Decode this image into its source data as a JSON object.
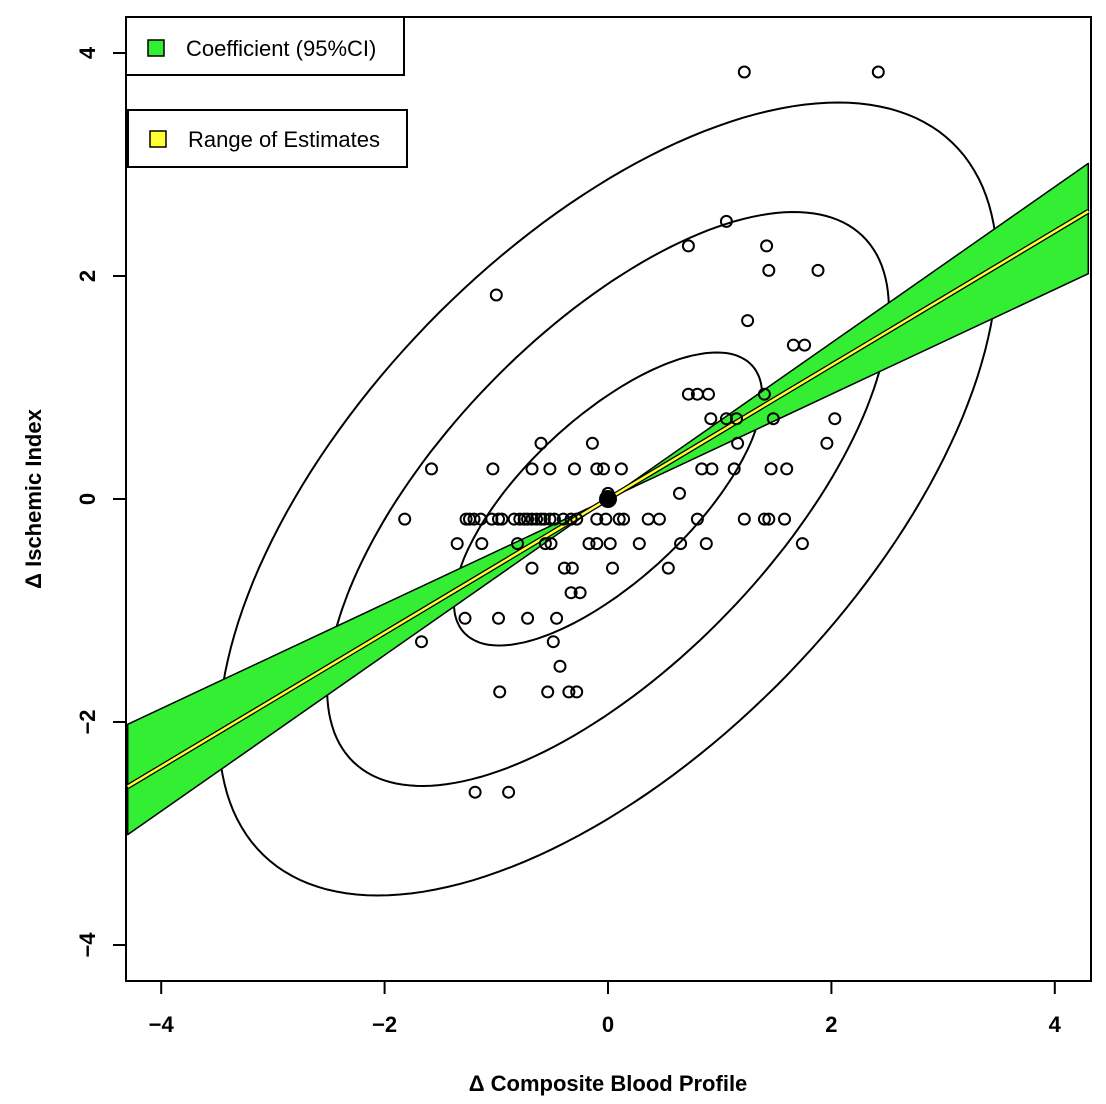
{
  "chart_data": {
    "type": "scatter",
    "xlabel": "Δ Composite Blood Profile",
    "ylabel": "Δ Ischemic Index",
    "xlim": [
      -4.3,
      4.3
    ],
    "ylim": [
      -4.3,
      4.3
    ],
    "xticks": [
      "−4",
      "−2",
      "0",
      "2",
      "4"
    ],
    "yticks": [
      "−4",
      "−2",
      "0",
      "2",
      "4"
    ],
    "xtick_values": [
      -4,
      -2,
      0,
      2,
      4
    ],
    "ytick_values": [
      -4,
      -2,
      0,
      2,
      4
    ],
    "grid": false,
    "legend": {
      "placement": "top-left",
      "entries": [
        {
          "label": "Coefficient (95%CI)",
          "color": "#33ee33"
        },
        {
          "label": "Range of Estimates",
          "color": "#ffff33"
        }
      ]
    },
    "center_point": [
      0,
      0
    ],
    "fit": {
      "slope": 0.6,
      "ci_low": 0.47,
      "ci_high": 0.7
    },
    "ellipses": [
      {
        "a": 1.76,
        "b": 0.73,
        "angle_deg": 43
      },
      {
        "a": 3.28,
        "b": 1.48,
        "angle_deg": 46
      },
      {
        "a": 4.44,
        "b": 2.25,
        "angle_deg": 46
      }
    ],
    "points": [
      [
        1.22,
        3.83
      ],
      [
        2.42,
        3.83
      ],
      [
        1.06,
        2.49
      ],
      [
        0.72,
        2.27
      ],
      [
        1.42,
        2.27
      ],
      [
        1.44,
        2.05
      ],
      [
        1.88,
        2.05
      ],
      [
        -1.0,
        1.83
      ],
      [
        1.25,
        1.6
      ],
      [
        1.66,
        1.38
      ],
      [
        1.76,
        1.38
      ],
      [
        0.72,
        0.94
      ],
      [
        0.8,
        0.94
      ],
      [
        0.9,
        0.94
      ],
      [
        1.4,
        0.94
      ],
      [
        0.92,
        0.72
      ],
      [
        1.06,
        0.72
      ],
      [
        1.15,
        0.72
      ],
      [
        1.48,
        0.72
      ],
      [
        2.03,
        0.72
      ],
      [
        -0.6,
        0.5
      ],
      [
        -0.14,
        0.5
      ],
      [
        1.16,
        0.5
      ],
      [
        1.96,
        0.5
      ],
      [
        -1.58,
        0.27
      ],
      [
        -1.03,
        0.27
      ],
      [
        -0.68,
        0.27
      ],
      [
        -0.52,
        0.27
      ],
      [
        -0.3,
        0.27
      ],
      [
        -0.1,
        0.27
      ],
      [
        -0.04,
        0.27
      ],
      [
        0.12,
        0.27
      ],
      [
        0.84,
        0.27
      ],
      [
        0.93,
        0.27
      ],
      [
        1.13,
        0.27
      ],
      [
        1.46,
        0.27
      ],
      [
        1.6,
        0.27
      ],
      [
        0.64,
        0.05
      ],
      [
        0.0,
        0.05
      ],
      [
        -1.82,
        -0.18
      ],
      [
        -1.27,
        -0.18
      ],
      [
        -1.24,
        -0.18
      ],
      [
        -1.2,
        -0.18
      ],
      [
        -1.14,
        -0.18
      ],
      [
        -1.04,
        -0.18
      ],
      [
        -0.98,
        -0.18
      ],
      [
        -0.95,
        -0.18
      ],
      [
        -0.84,
        -0.18
      ],
      [
        -0.79,
        -0.18
      ],
      [
        -0.75,
        -0.18
      ],
      [
        -0.72,
        -0.18
      ],
      [
        -0.68,
        -0.18
      ],
      [
        -0.64,
        -0.18
      ],
      [
        -0.6,
        -0.18
      ],
      [
        -0.57,
        -0.18
      ],
      [
        -0.52,
        -0.18
      ],
      [
        -0.48,
        -0.18
      ],
      [
        -0.4,
        -0.18
      ],
      [
        -0.33,
        -0.18
      ],
      [
        -0.28,
        -0.18
      ],
      [
        -0.1,
        -0.18
      ],
      [
        -0.02,
        -0.18
      ],
      [
        0.1,
        -0.18
      ],
      [
        0.14,
        -0.18
      ],
      [
        0.36,
        -0.18
      ],
      [
        0.46,
        -0.18
      ],
      [
        0.8,
        -0.18
      ],
      [
        1.22,
        -0.18
      ],
      [
        1.4,
        -0.18
      ],
      [
        1.44,
        -0.18
      ],
      [
        1.58,
        -0.18
      ],
      [
        -1.35,
        -0.4
      ],
      [
        -1.13,
        -0.4
      ],
      [
        -0.81,
        -0.4
      ],
      [
        -0.56,
        -0.4
      ],
      [
        -0.51,
        -0.4
      ],
      [
        -0.17,
        -0.4
      ],
      [
        -0.1,
        -0.4
      ],
      [
        0.02,
        -0.4
      ],
      [
        0.28,
        -0.4
      ],
      [
        0.65,
        -0.4
      ],
      [
        0.88,
        -0.4
      ],
      [
        1.74,
        -0.4
      ],
      [
        -0.68,
        -0.62
      ],
      [
        -0.39,
        -0.62
      ],
      [
        -0.32,
        -0.62
      ],
      [
        0.04,
        -0.62
      ],
      [
        0.54,
        -0.62
      ],
      [
        -0.33,
        -0.84
      ],
      [
        -0.25,
        -0.84
      ],
      [
        -1.28,
        -1.07
      ],
      [
        -0.98,
        -1.07
      ],
      [
        -0.72,
        -1.07
      ],
      [
        -0.46,
        -1.07
      ],
      [
        -1.67,
        -1.28
      ],
      [
        -0.49,
        -1.28
      ],
      [
        -0.43,
        -1.5
      ],
      [
        -0.97,
        -1.73
      ],
      [
        -0.54,
        -1.73
      ],
      [
        -0.35,
        -1.73
      ],
      [
        -0.28,
        -1.73
      ],
      [
        -1.19,
        -2.63
      ],
      [
        -0.89,
        -2.63
      ]
    ]
  }
}
